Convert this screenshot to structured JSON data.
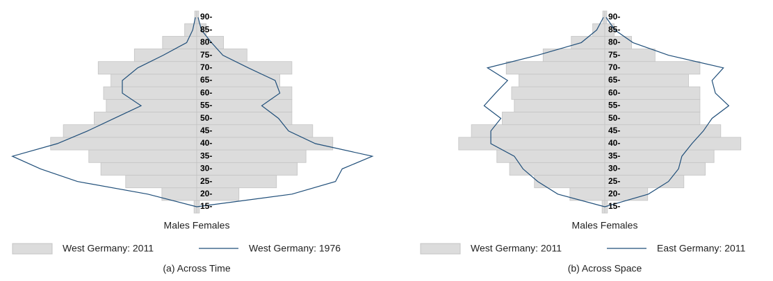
{
  "chart_data": [
    {
      "type": "pyramid",
      "xlabel": "Males Females",
      "caption": "(a) Across Time",
      "categories": [
        "15-",
        "20-",
        "25-",
        "30-",
        "35-",
        "40-",
        "45-",
        "50-",
        "55-",
        "60-",
        "65-",
        "70-",
        "75-",
        "80-",
        "85-",
        "90-"
      ],
      "xlim": [
        0,
        280
      ],
      "series": [
        {
          "name": "West Germany: 2011",
          "style": "bar",
          "color": "#dcdcdc",
          "males": [
            4,
            52,
            106,
            143,
            161,
            218,
            199,
            153,
            135,
            139,
            128,
            147,
            93,
            51,
            18,
            3
          ],
          "females": [
            4,
            63,
            119,
            150,
            163,
            203,
            173,
            142,
            142,
            142,
            124,
            142,
            75,
            40,
            14,
            3
          ]
        },
        {
          "name": "West Germany: 1976",
          "style": "line",
          "color": "#1f4e79",
          "males": [
            0,
            73,
            178,
            233,
            275,
            208,
            163,
            123,
            83,
            111,
            111,
            88,
            50,
            15,
            6,
            2
          ],
          "females": [
            0,
            142,
            207,
            217,
            262,
            177,
            137,
            122,
            97,
            124,
            117,
            77,
            39,
            22,
            7,
            2
          ]
        }
      ]
    },
    {
      "type": "pyramid",
      "xlabel": "Males Females",
      "caption": "(b) Across Space",
      "categories": [
        "15-",
        "20-",
        "25-",
        "30-",
        "35-",
        "40-",
        "45-",
        "50-",
        "55-",
        "60-",
        "65-",
        "70-",
        "75-",
        "80-",
        "85-",
        "90-"
      ],
      "xlim": [
        0,
        280
      ],
      "series": [
        {
          "name": "West Germany: 2011",
          "style": "bar",
          "color": "#dcdcdc",
          "males": [
            4,
            52,
            105,
            142,
            161,
            218,
            199,
            153,
            135,
            139,
            128,
            147,
            92,
            50,
            18,
            3
          ],
          "females": [
            4,
            64,
            118,
            150,
            163,
            203,
            173,
            142,
            142,
            142,
            125,
            142,
            75,
            40,
            14,
            3
          ]
        },
        {
          "name": "East Germany: 2011",
          "style": "line",
          "color": "#1f4e79",
          "males": [
            0,
            70,
            100,
            122,
            135,
            170,
            170,
            155,
            180,
            163,
            145,
            175,
            100,
            35,
            12,
            2
          ],
          "females": [
            0,
            65,
            95,
            110,
            115,
            130,
            147,
            160,
            185,
            165,
            160,
            177,
            95,
            42,
            15,
            2
          ]
        }
      ]
    }
  ]
}
